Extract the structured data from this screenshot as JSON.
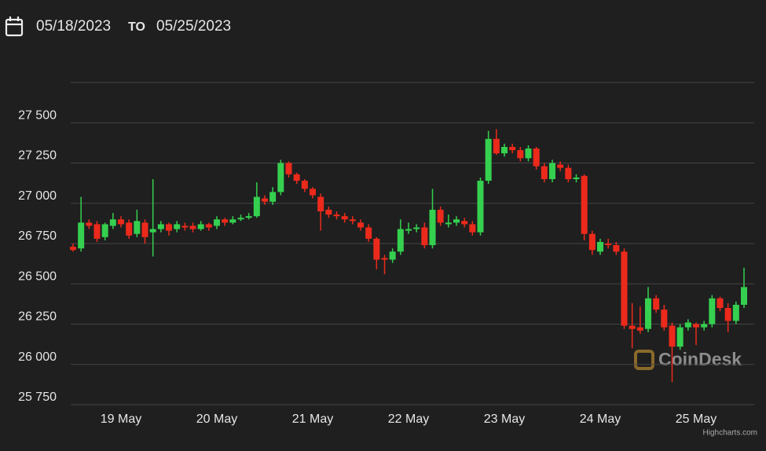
{
  "header": {
    "from": "05/18/2023",
    "separator": "TO",
    "to": "05/25/2023"
  },
  "chart_data": {
    "type": "candlestick",
    "categories": [
      null,
      null,
      null,
      null,
      null,
      null,
      "19 May",
      null,
      null,
      null,
      null,
      null,
      null,
      null,
      null,
      null,
      null,
      null,
      "20 May",
      null,
      null,
      null,
      null,
      null,
      null,
      null,
      null,
      null,
      null,
      null,
      "21 May",
      null,
      null,
      null,
      null,
      null,
      null,
      null,
      null,
      null,
      null,
      null,
      "22 May",
      null,
      null,
      null,
      null,
      null,
      null,
      null,
      null,
      null,
      null,
      null,
      "23 May",
      null,
      null,
      null,
      null,
      null,
      null,
      null,
      null,
      null,
      null,
      null,
      "24 May",
      null,
      null,
      null,
      null,
      null,
      null,
      null,
      null,
      null,
      null,
      null,
      "25 May",
      null,
      null,
      null,
      null,
      null,
      null
    ],
    "open": [
      26730,
      26720,
      26880,
      26870,
      26790,
      26860,
      26900,
      26880,
      26810,
      26880,
      26820,
      26840,
      26870,
      26840,
      26860,
      26860,
      26840,
      26870,
      26860,
      26900,
      26880,
      26900,
      26910,
      26920,
      27030,
      27010,
      27070,
      27250,
      27180,
      27140,
      27090,
      27040,
      26960,
      26930,
      26920,
      26900,
      26880,
      26850,
      26780,
      26660,
      26650,
      26700,
      26830,
      26840,
      26850,
      26740,
      26960,
      26870,
      26880,
      26890,
      26870,
      26820,
      27140,
      27400,
      27310,
      27350,
      27330,
      27280,
      27340,
      27230,
      27150,
      27240,
      27220,
      27150,
      27170,
      26810,
      26700,
      26750,
      26740,
      26700,
      26240,
      26230,
      26220,
      26410,
      26340,
      26240,
      26110,
      26230,
      26250,
      26230,
      26250,
      26410,
      26350,
      26270,
      26370
    ],
    "high": [
      26750,
      27040,
      26900,
      26890,
      26880,
      26940,
      26920,
      26900,
      26960,
      26900,
      27150,
      26890,
      26880,
      26890,
      26880,
      26880,
      26890,
      26880,
      26920,
      26910,
      26920,
      26930,
      26940,
      27130,
      27050,
      27100,
      27270,
      27260,
      27190,
      27150,
      27100,
      27060,
      26980,
      26950,
      26940,
      26920,
      26900,
      26870,
      26790,
      26680,
      26720,
      26900,
      26880,
      26870,
      26880,
      27090,
      26980,
      26930,
      26920,
      26910,
      26890,
      27160,
      27450,
      27460,
      27370,
      27370,
      27350,
      27360,
      27350,
      27250,
      27270,
      27260,
      27240,
      27180,
      27180,
      26830,
      26780,
      26780,
      26760,
      26720,
      26380,
      26360,
      26480,
      26430,
      26370,
      26260,
      26250,
      26280,
      26260,
      26270,
      26430,
      26420,
      26380,
      26390,
      26600
    ],
    "low": [
      26700,
      26700,
      26840,
      26760,
      26770,
      26840,
      26850,
      26780,
      26790,
      26750,
      26670,
      26820,
      26800,
      26820,
      26830,
      26820,
      26830,
      26830,
      26840,
      26860,
      26870,
      26890,
      26900,
      26910,
      26990,
      26990,
      27050,
      27160,
      27120,
      27070,
      27030,
      26830,
      26910,
      26900,
      26880,
      26870,
      26830,
      26760,
      26590,
      26560,
      26630,
      26680,
      26810,
      26820,
      26720,
      26720,
      26860,
      26850,
      26860,
      26850,
      26800,
      26800,
      27120,
      27300,
      27290,
      27310,
      27260,
      27260,
      27210,
      27130,
      27130,
      27200,
      27130,
      27130,
      26770,
      26680,
      26680,
      26720,
      26680,
      26220,
      26100,
      26190,
      26200,
      26320,
      26210,
      25890,
      26090,
      26210,
      26120,
      26210,
      26230,
      26330,
      26200,
      26250,
      26350
    ],
    "close": [
      26710,
      26880,
      26860,
      26780,
      26870,
      26900,
      26870,
      26800,
      26890,
      26790,
      26840,
      26870,
      26830,
      26870,
      26850,
      26840,
      26870,
      26850,
      26900,
      26880,
      26900,
      26910,
      26920,
      27040,
      27010,
      27070,
      27250,
      27180,
      27140,
      27090,
      27050,
      26950,
      26930,
      26920,
      26900,
      26890,
      26850,
      26780,
      26650,
      26650,
      26700,
      26840,
      26840,
      26850,
      26740,
      26960,
      26880,
      26880,
      26900,
      26870,
      26820,
      27140,
      27400,
      27310,
      27350,
      27330,
      27280,
      27340,
      27230,
      27150,
      27250,
      27220,
      27150,
      27160,
      26810,
      26710,
      26760,
      26740,
      26700,
      26240,
      26220,
      26210,
      26410,
      26340,
      26230,
      26110,
      26230,
      26260,
      26230,
      26250,
      26410,
      26350,
      26270,
      26370,
      26480
    ],
    "up_color": "#35d04f",
    "down_color": "#ec2a1c",
    "ylim": [
      25750,
      27750
    ],
    "yticks": [
      {
        "value": 25750,
        "label": "25 750"
      },
      {
        "value": 26000,
        "label": "26 000"
      },
      {
        "value": 26250,
        "label": "26 250"
      },
      {
        "value": 26500,
        "label": "26 500"
      },
      {
        "value": 26750,
        "label": "26 750"
      },
      {
        "value": 27000,
        "label": "27 000"
      },
      {
        "value": 27250,
        "label": "27 250"
      },
      {
        "value": 27500,
        "label": "27 500"
      }
    ],
    "grid": true,
    "watermark": "CoinDesk",
    "credit": "Highcharts.com"
  }
}
